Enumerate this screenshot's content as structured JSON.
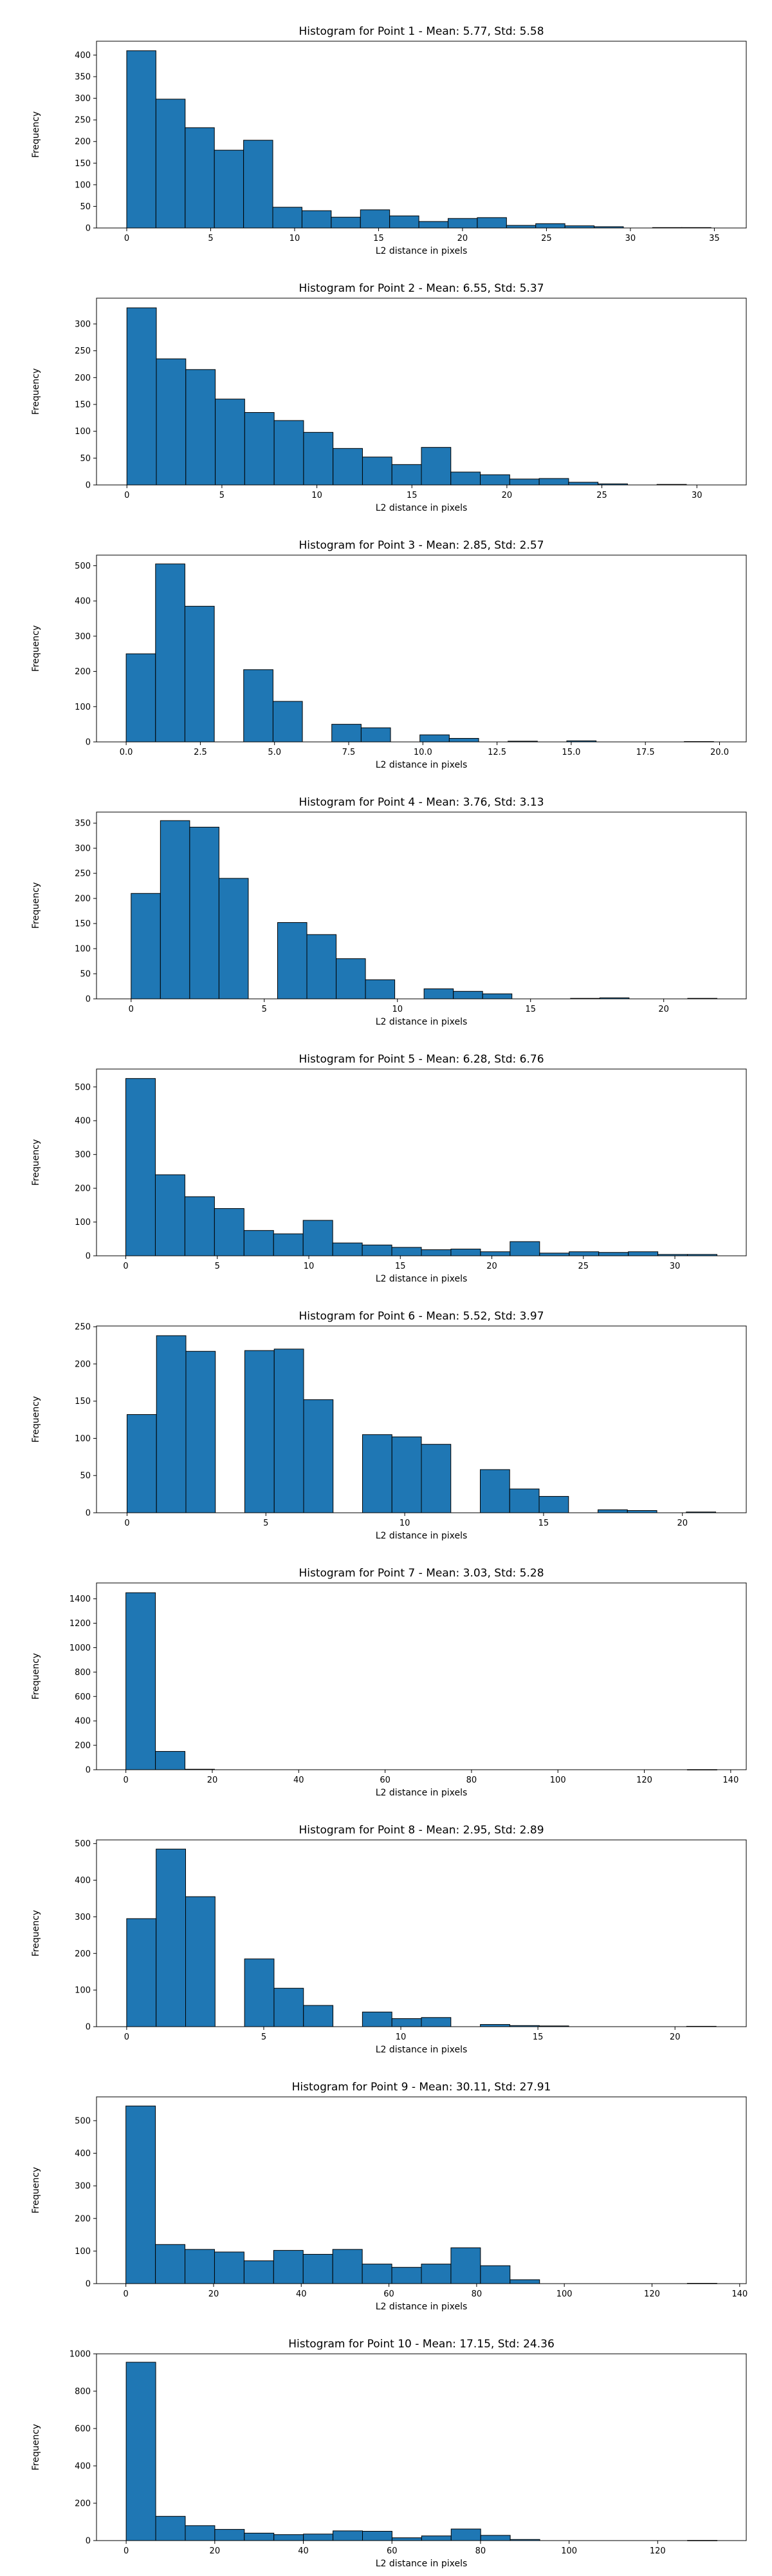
{
  "style": {
    "bar_color": "#1f77b4",
    "edge_color": "#000000",
    "background": "#ffffff"
  },
  "chart_data": [
    {
      "type": "bar",
      "title": "Histogram for Point 1 - Mean: 5.77, Std: 5.58",
      "xlabel": "L2 distance in pixels",
      "ylabel": "Frequency",
      "grid": false,
      "xlim": [
        -1.8,
        36.9
      ],
      "ylim": [
        0,
        432
      ],
      "xticks": [
        0,
        5,
        10,
        15,
        20,
        25,
        30,
        35
      ],
      "yticks": [
        0,
        50,
        100,
        150,
        200,
        250,
        300,
        350,
        400
      ],
      "bin_edges": [
        0,
        1.74,
        3.48,
        5.22,
        6.96,
        8.7,
        10.44,
        12.18,
        13.92,
        15.66,
        17.4,
        19.14,
        20.88,
        22.62,
        24.36,
        26.1,
        27.84,
        29.58,
        31.32,
        33.06,
        34.8
      ],
      "values": [
        410,
        298,
        232,
        180,
        203,
        48,
        40,
        25,
        42,
        28,
        15,
        22,
        24,
        6,
        10,
        5,
        3,
        0,
        1,
        1
      ]
    },
    {
      "type": "bar",
      "title": "Histogram for Point 2 - Mean: 6.55, Std: 5.37",
      "xlabel": "L2 distance in pixels",
      "ylabel": "Frequency",
      "grid": false,
      "xlim": [
        -1.6,
        32.6
      ],
      "ylim": [
        0,
        348
      ],
      "xticks": [
        0,
        5,
        10,
        15,
        20,
        25,
        30
      ],
      "yticks": [
        0,
        50,
        100,
        150,
        200,
        250,
        300
      ],
      "bin_edges": [
        0,
        1.55,
        3.1,
        4.65,
        6.2,
        7.75,
        9.3,
        10.85,
        12.4,
        13.95,
        15.5,
        17.05,
        18.6,
        20.15,
        21.7,
        23.25,
        24.8,
        26.35,
        27.9,
        29.45,
        31.0
      ],
      "values": [
        330,
        235,
        215,
        160,
        135,
        120,
        98,
        68,
        52,
        38,
        70,
        24,
        19,
        11,
        12,
        5,
        2,
        0,
        1,
        0
      ]
    },
    {
      "type": "bar",
      "title": "Histogram for Point 3 - Mean: 2.85, Std: 2.57",
      "xlabel": "L2 distance in pixels",
      "ylabel": "Frequency",
      "grid": false,
      "xlim": [
        -1.0,
        20.9
      ],
      "ylim": [
        0,
        530
      ],
      "xticks": [
        0.0,
        2.5,
        5.0,
        7.5,
        10.0,
        12.5,
        15.0,
        17.5,
        20.0
      ],
      "xticklabels": [
        "0.0",
        "2.5",
        "5.0",
        "7.5",
        "10.0",
        "12.5",
        "15.0",
        "17.5",
        "20.0"
      ],
      "yticks": [
        0,
        100,
        200,
        300,
        400,
        500
      ],
      "bin_edges": [
        0,
        0.99,
        1.98,
        2.97,
        3.96,
        4.95,
        5.94,
        6.93,
        7.92,
        8.91,
        9.9,
        10.89,
        11.88,
        12.87,
        13.86,
        14.85,
        15.84,
        16.83,
        17.82,
        18.81,
        19.8
      ],
      "values": [
        250,
        505,
        385,
        0,
        205,
        115,
        0,
        50,
        40,
        0,
        20,
        10,
        0,
        2,
        0,
        3,
        0,
        0,
        0,
        1
      ]
    },
    {
      "type": "bar",
      "title": "Histogram for Point 4 - Mean: 3.76, Std: 3.13",
      "xlabel": "L2 distance in pixels",
      "ylabel": "Frequency",
      "grid": false,
      "xlim": [
        -1.3,
        23.1
      ],
      "ylim": [
        0,
        372
      ],
      "xticks": [
        0,
        5,
        10,
        15,
        20
      ],
      "yticks": [
        0,
        50,
        100,
        150,
        200,
        250,
        300,
        350
      ],
      "bin_edges": [
        0,
        1.1,
        2.2,
        3.3,
        4.4,
        5.5,
        6.6,
        7.7,
        8.8,
        9.9,
        11.0,
        12.1,
        13.2,
        14.3,
        15.4,
        16.5,
        17.6,
        18.7,
        19.8,
        20.9,
        22.0
      ],
      "values": [
        210,
        355,
        342,
        240,
        0,
        152,
        128,
        80,
        38,
        0,
        20,
        15,
        10,
        0,
        0,
        1,
        2,
        0,
        0,
        1
      ]
    },
    {
      "type": "bar",
      "title": "Histogram for Point 5 - Mean: 6.28, Std: 6.76",
      "xlabel": "L2 distance in pixels",
      "ylabel": "Frequency",
      "grid": false,
      "xlim": [
        -1.6,
        33.9
      ],
      "ylim": [
        0,
        553
      ],
      "xticks": [
        0,
        5,
        10,
        15,
        20,
        25,
        30
      ],
      "yticks": [
        0,
        100,
        200,
        300,
        400,
        500
      ],
      "bin_edges": [
        0,
        1.615,
        3.23,
        4.845,
        6.46,
        8.075,
        9.69,
        11.305,
        12.92,
        14.535,
        16.15,
        17.765,
        19.38,
        20.995,
        22.61,
        24.225,
        25.84,
        27.455,
        29.07,
        30.685,
        32.3
      ],
      "values": [
        525,
        240,
        175,
        140,
        75,
        65,
        105,
        38,
        32,
        25,
        18,
        20,
        12,
        42,
        8,
        12,
        10,
        12,
        4,
        4
      ]
    },
    {
      "type": "bar",
      "title": "Histogram for Point 6 - Mean: 5.52, Std: 3.97",
      "xlabel": "L2 distance in pixels",
      "ylabel": "Frequency",
      "grid": false,
      "xlim": [
        -1.1,
        22.3
      ],
      "ylim": [
        0,
        251
      ],
      "xticks": [
        0,
        5,
        10,
        15,
        20
      ],
      "yticks": [
        0,
        50,
        100,
        150,
        200,
        250
      ],
      "bin_edges": [
        0,
        1.06,
        2.12,
        3.18,
        4.24,
        5.3,
        6.36,
        7.42,
        8.48,
        9.54,
        10.6,
        11.66,
        12.72,
        13.78,
        14.84,
        15.9,
        16.96,
        18.02,
        19.08,
        20.14,
        21.2
      ],
      "values": [
        132,
        238,
        217,
        0,
        218,
        220,
        152,
        0,
        105,
        102,
        92,
        0,
        58,
        32,
        22,
        0,
        4,
        3,
        0,
        1
      ]
    },
    {
      "type": "bar",
      "title": "Histogram for Point 7 - Mean: 3.03, Std: 5.28",
      "xlabel": "L2 distance in pixels",
      "ylabel": "Frequency",
      "grid": false,
      "xlim": [
        -6.8,
        143.6
      ],
      "ylim": [
        0,
        1530
      ],
      "xticks": [
        0,
        20,
        40,
        60,
        80,
        100,
        120,
        140
      ],
      "yticks": [
        0,
        200,
        400,
        600,
        800,
        1000,
        1200,
        1400
      ],
      "bin_edges": [
        0,
        6.84,
        13.68,
        20.52,
        27.36,
        34.2,
        41.04,
        47.88,
        54.72,
        61.56,
        68.4,
        75.24,
        82.08,
        88.92,
        95.76,
        102.6,
        109.44,
        116.28,
        123.12,
        129.96,
        136.8
      ],
      "values": [
        1450,
        150,
        4,
        0,
        0,
        0,
        0,
        0,
        0,
        0,
        0,
        0,
        0,
        0,
        0,
        0,
        0,
        0,
        0,
        1
      ]
    },
    {
      "type": "bar",
      "title": "Histogram for Point 8 - Mean: 2.95, Std: 2.89",
      "xlabel": "L2 distance in pixels",
      "ylabel": "Frequency",
      "grid": false,
      "xlim": [
        -1.1,
        22.6
      ],
      "ylim": [
        0,
        510
      ],
      "xticks": [
        0,
        5,
        10,
        15,
        20
      ],
      "yticks": [
        0,
        100,
        200,
        300,
        400,
        500
      ],
      "bin_edges": [
        0,
        1.075,
        2.15,
        3.225,
        4.3,
        5.375,
        6.45,
        7.525,
        8.6,
        9.675,
        10.75,
        11.825,
        12.9,
        13.975,
        15.05,
        16.125,
        17.2,
        18.275,
        19.35,
        20.425,
        21.5
      ],
      "values": [
        295,
        485,
        355,
        0,
        185,
        105,
        58,
        0,
        40,
        22,
        25,
        0,
        6,
        3,
        2,
        0,
        0,
        0,
        0,
        1
      ]
    },
    {
      "type": "bar",
      "title": "Histogram for Point 9 - Mean: 30.11, Std: 27.91",
      "xlabel": "L2 distance in pixels",
      "ylabel": "Frequency",
      "grid": false,
      "xlim": [
        -6.7,
        141.5
      ],
      "ylim": [
        0,
        573
      ],
      "xticks": [
        0,
        20,
        40,
        60,
        80,
        100,
        120,
        140
      ],
      "yticks": [
        0,
        100,
        200,
        300,
        400,
        500
      ],
      "bin_edges": [
        0,
        6.74,
        13.48,
        20.22,
        26.96,
        33.7,
        40.44,
        47.18,
        53.92,
        60.66,
        67.4,
        74.14,
        80.88,
        87.62,
        94.36,
        101.1,
        107.84,
        114.58,
        121.32,
        128.06,
        134.8
      ],
      "values": [
        545,
        120,
        105,
        97,
        70,
        102,
        90,
        105,
        60,
        50,
        60,
        110,
        55,
        12,
        0,
        0,
        0,
        0,
        0,
        1
      ]
    },
    {
      "type": "bar",
      "title": "Histogram for Point 10 - Mean: 17.15, Std: 24.36",
      "xlabel": "L2 distance in pixels",
      "ylabel": "Frequency",
      "grid": false,
      "xlim": [
        -6.7,
        140.0
      ],
      "ylim": [
        0,
        1000
      ],
      "xticks": [
        0,
        20,
        40,
        60,
        80,
        100,
        120
      ],
      "yticks": [
        0,
        200,
        400,
        600,
        800,
        1000
      ],
      "bin_edges": [
        0,
        6.67,
        13.34,
        20.01,
        26.68,
        33.35,
        40.02,
        46.69,
        53.36,
        60.03,
        66.7,
        73.37,
        80.04,
        86.71,
        93.38,
        100.05,
        106.72,
        113.39,
        120.06,
        126.73,
        133.4
      ],
      "values": [
        955,
        130,
        80,
        60,
        40,
        32,
        35,
        52,
        50,
        15,
        25,
        62,
        28,
        6,
        0,
        0,
        0,
        0,
        0,
        1
      ]
    }
  ]
}
